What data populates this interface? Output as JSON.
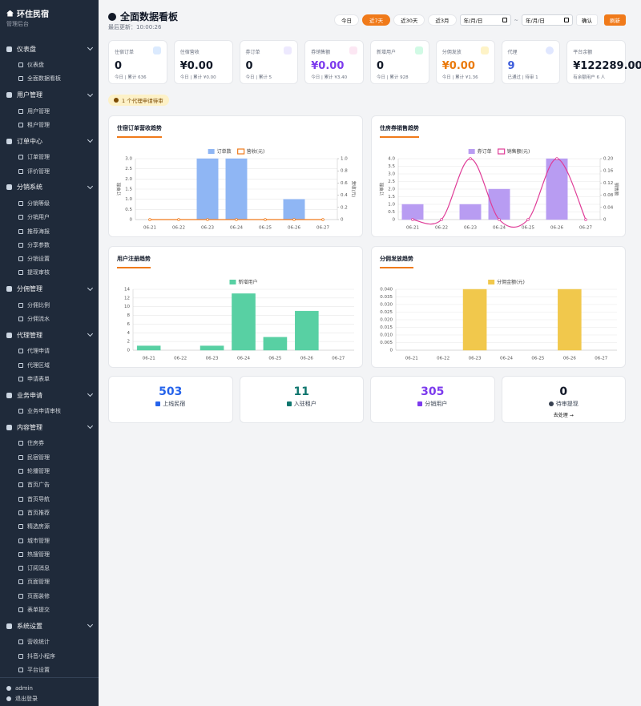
{
  "sidebar": {
    "brand": "环住民宿",
    "subtitle": "管理后台",
    "sections": [
      {
        "title": "仪表盘",
        "items": [
          "仪表盘",
          "全面数据看板"
        ]
      },
      {
        "title": "用户管理",
        "items": [
          "用户管理",
          "租户管理"
        ]
      },
      {
        "title": "订单中心",
        "items": [
          "订单管理",
          "评价管理"
        ]
      },
      {
        "title": "分销系统",
        "items": [
          "分销等级",
          "分销用户",
          "推荐海报",
          "分享参数",
          "分销设置",
          "提现审核"
        ]
      },
      {
        "title": "分佣管理",
        "items": [
          "分佣比例",
          "分佣流水"
        ]
      },
      {
        "title": "代理管理",
        "items": [
          "代理申请",
          "代理区域",
          "申请表单"
        ]
      },
      {
        "title": "业务申请",
        "items": [
          "业务申请审核"
        ]
      },
      {
        "title": "内容管理",
        "items": [
          "住房券",
          "民宿管理",
          "轮播管理",
          "首页广告",
          "首页导航",
          "首页推荐",
          "精选房源",
          "城市管理",
          "热搜管理",
          "订阅消息",
          "页面管理",
          "页面装修",
          "表单提交"
        ]
      },
      {
        "title": "系统设置",
        "items": [
          "营收统计",
          "抖音小程序",
          "平台设置"
        ]
      }
    ],
    "user": "admin",
    "logout": "退出登录"
  },
  "header": {
    "title": "全面数据看板",
    "updated": "最后更新：10:00:26",
    "ranges": [
      "今日",
      "近7天",
      "近30天",
      "近3月"
    ],
    "date_placeholder": "年/月/日",
    "separator": "~",
    "confirm": "确认",
    "refresh": "刷新"
  },
  "stats": [
    {
      "label": "住宿订单",
      "value": "0",
      "sub": "今日 | 累计 636"
    },
    {
      "label": "住宿营收",
      "value": "¥0.00",
      "sub": "今日 | 累计 ¥0.00"
    },
    {
      "label": "券订单",
      "value": "0",
      "sub": "今日 | 累计 5"
    },
    {
      "label": "券销售额",
      "value": "¥0.00",
      "sub": "今日 | 累计 ¥3.40"
    },
    {
      "label": "新增用户",
      "value": "0",
      "sub": "今日 | 累计 928"
    },
    {
      "label": "分佣发放",
      "value": "¥0.00",
      "sub": "今日 | 累计 ¥1.36"
    },
    {
      "label": "代理",
      "value": "9",
      "sub": "已通过 | 待审 1"
    },
    {
      "label": "平台余额",
      "value": "¥122289.00",
      "sub": "有余额用户 6 人"
    }
  ],
  "alert": "1 个代理申请待审",
  "chart_data": [
    {
      "type": "bar",
      "title": "住宿订单营收趋势",
      "categories": [
        "06-21",
        "06-22",
        "06-23",
        "06-24",
        "06-25",
        "06-26",
        "06-27"
      ],
      "series": [
        {
          "name": "订单数",
          "type": "bar",
          "color": "#8fb6f4",
          "values": [
            0,
            0,
            3,
            3,
            0,
            1,
            0
          ]
        },
        {
          "name": "营收(元)",
          "type": "line",
          "color": "#f07a1a",
          "axis": "y2",
          "values": [
            0,
            0,
            0,
            0,
            0,
            0,
            0
          ]
        }
      ],
      "ylabel": "订单数",
      "y2label": "营收(元)",
      "ylim": [
        0,
        3
      ],
      "yticks": [
        0,
        0.5,
        {
          "value": 1,
          "label": "1.0"
        },
        1.5,
        {
          "value": 2,
          "label": "2.0"
        },
        2.5,
        {
          "value": 3,
          "label": "3.0"
        }
      ],
      "y2lim": [
        0,
        1
      ],
      "y2ticks": [
        0,
        0.2,
        0.4,
        0.6,
        0.8,
        {
          "value": 1,
          "label": "1.0"
        }
      ],
      "grid": true
    },
    {
      "type": "bar",
      "title": "住房券销售趋势",
      "categories": [
        "06-21",
        "06-22",
        "06-23",
        "06-24",
        "06-25",
        "06-26",
        "06-27"
      ],
      "series": [
        {
          "name": "券订单",
          "type": "bar",
          "color": "#b89cf2",
          "values": [
            1,
            0,
            1,
            2,
            0,
            4,
            0
          ]
        },
        {
          "name": "销售额(元)",
          "type": "line",
          "color": "#df3c97",
          "axis": "y2",
          "smooth": true,
          "values": [
            0,
            0,
            0.2,
            0,
            0,
            0.2,
            0
          ]
        }
      ],
      "ylabel": "订单数",
      "y2label": "销售额",
      "ylim": [
        0,
        4
      ],
      "yticks": [
        0,
        0.5,
        {
          "value": 1,
          "label": "1.0"
        },
        1.5,
        {
          "value": 2,
          "label": "2.0"
        },
        2.5,
        {
          "value": 3,
          "label": "3.0"
        },
        3.5,
        {
          "value": 4,
          "label": "4.0"
        }
      ],
      "y2lim": [
        0,
        0.2
      ],
      "y2ticks": [
        0,
        0.04,
        0.08,
        0.12,
        0.16,
        {
          "value": 0.2,
          "label": "0.20"
        }
      ],
      "grid": true
    },
    {
      "type": "bar",
      "title": "用户注册趋势",
      "categories": [
        "06-21",
        "06-22",
        "06-23",
        "06-24",
        "06-25",
        "06-26",
        "06-27"
      ],
      "series": [
        {
          "name": "新增用户",
          "type": "bar",
          "color": "#58d0a3",
          "values": [
            1,
            0,
            1,
            13,
            3,
            9,
            0
          ]
        }
      ],
      "ylim": [
        0,
        14
      ],
      "yticks": [
        0,
        2,
        4,
        6,
        8,
        10,
        12,
        14
      ],
      "grid": true
    },
    {
      "type": "bar",
      "title": "分佣发放趋势",
      "categories": [
        "06-21",
        "06-22",
        "06-23",
        "06-24",
        "06-25",
        "06-26",
        "06-27"
      ],
      "series": [
        {
          "name": "分佣金额(元)",
          "type": "bar",
          "color": "#f1c84c",
          "values": [
            0,
            0,
            0.04,
            0,
            0,
            0.04,
            0
          ]
        }
      ],
      "ylim": [
        0,
        0.04
      ],
      "yticks": [
        0,
        0.005,
        {
          "value": 0.01,
          "label": "0.010"
        },
        0.015,
        {
          "value": 0.02,
          "label": "0.020"
        },
        0.025,
        {
          "value": 0.03,
          "label": "0.030"
        },
        0.035,
        {
          "value": 0.04,
          "label": "0.040"
        }
      ],
      "grid": true
    }
  ],
  "summary": [
    {
      "value": 503,
      "label": "上线民宿"
    },
    {
      "value": 11,
      "label": "入驻租户"
    },
    {
      "value": 305,
      "label": "分销用户"
    },
    {
      "value": 0,
      "label": "待审提现",
      "action": "去处理 →"
    }
  ]
}
